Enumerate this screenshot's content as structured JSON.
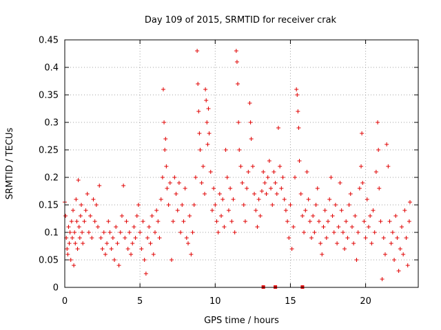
{
  "chart_data": {
    "type": "scatter",
    "title": "Day 109 of 2015, SRMTID for receiver crak",
    "xlabel": "GPS time / hours",
    "ylabel": "SRMTID / TECUs",
    "xlim": [
      0,
      23.5
    ],
    "ylim": [
      0,
      0.45
    ],
    "xticks": [
      0,
      5,
      10,
      15,
      20
    ],
    "yticks": [
      0,
      0.05,
      0.1,
      0.15,
      0.2,
      0.25,
      0.3,
      0.35,
      0.4,
      0.45
    ],
    "grid": true,
    "marker": "plus",
    "color": "#e00000",
    "series": [
      {
        "name": "SRMTID",
        "points": [
          [
            0.0,
            0.155
          ],
          [
            0.05,
            0.13
          ],
          [
            0.1,
            0.09
          ],
          [
            0.15,
            0.07
          ],
          [
            0.2,
            0.06
          ],
          [
            0.25,
            0.11
          ],
          [
            0.3,
            0.08
          ],
          [
            0.35,
            0.1
          ],
          [
            0.4,
            0.05
          ],
          [
            0.45,
            0.12
          ],
          [
            0.5,
            0.09
          ],
          [
            0.55,
            0.14
          ],
          [
            0.6,
            0.04
          ],
          [
            0.65,
            0.1
          ],
          [
            0.7,
            0.08
          ],
          [
            0.75,
            0.16
          ],
          [
            0.8,
            0.12
          ],
          [
            0.85,
            0.07
          ],
          [
            0.9,
            0.195
          ],
          [
            0.95,
            0.11
          ],
          [
            1.0,
            0.09
          ],
          [
            1.05,
            0.13
          ],
          [
            1.1,
            0.15
          ],
          [
            1.15,
            0.1
          ],
          [
            1.2,
            0.08
          ],
          [
            1.3,
            0.12
          ],
          [
            1.4,
            0.14
          ],
          [
            1.5,
            0.17
          ],
          [
            1.6,
            0.1
          ],
          [
            1.7,
            0.13
          ],
          [
            1.8,
            0.09
          ],
          [
            1.9,
            0.16
          ],
          [
            2.0,
            0.12
          ],
          [
            2.1,
            0.15
          ],
          [
            2.2,
            0.11
          ],
          [
            2.3,
            0.185
          ],
          [
            2.4,
            0.09
          ],
          [
            2.5,
            0.07
          ],
          [
            2.6,
            0.1
          ],
          [
            2.7,
            0.06
          ],
          [
            2.8,
            0.08
          ],
          [
            2.9,
            0.12
          ],
          [
            3.0,
            0.1
          ],
          [
            3.1,
            0.07
          ],
          [
            3.2,
            0.09
          ],
          [
            3.3,
            0.05
          ],
          [
            3.4,
            0.11
          ],
          [
            3.5,
            0.08
          ],
          [
            3.6,
            0.04
          ],
          [
            3.7,
            0.1
          ],
          [
            3.8,
            0.13
          ],
          [
            3.9,
            0.185
          ],
          [
            4.0,
            0.09
          ],
          [
            4.1,
            0.12
          ],
          [
            4.2,
            0.07
          ],
          [
            4.3,
            0.1
          ],
          [
            4.4,
            0.06
          ],
          [
            4.5,
            0.08
          ],
          [
            4.6,
            0.11
          ],
          [
            4.7,
            0.09
          ],
          [
            4.8,
            0.13
          ],
          [
            4.9,
            0.15
          ],
          [
            5.0,
            0.1
          ],
          [
            5.1,
            0.07
          ],
          [
            5.2,
            0.12
          ],
          [
            5.3,
            0.05
          ],
          [
            5.4,
            0.025
          ],
          [
            5.5,
            0.09
          ],
          [
            5.6,
            0.11
          ],
          [
            5.7,
            0.08
          ],
          [
            5.8,
            0.13
          ],
          [
            5.9,
            0.06
          ],
          [
            6.0,
            0.1
          ],
          [
            6.1,
            0.14
          ],
          [
            6.2,
            0.12
          ],
          [
            6.3,
            0.09
          ],
          [
            6.4,
            0.16
          ],
          [
            6.5,
            0.2
          ],
          [
            6.55,
            0.36
          ],
          [
            6.6,
            0.3
          ],
          [
            6.65,
            0.25
          ],
          [
            6.7,
            0.27
          ],
          [
            6.75,
            0.22
          ],
          [
            6.8,
            0.18
          ],
          [
            6.9,
            0.15
          ],
          [
            7.0,
            0.19
          ],
          [
            7.1,
            0.05
          ],
          [
            7.2,
            0.12
          ],
          [
            7.3,
            0.2
          ],
          [
            7.4,
            0.17
          ],
          [
            7.5,
            0.14
          ],
          [
            7.6,
            0.19
          ],
          [
            7.7,
            0.1
          ],
          [
            7.8,
            0.15
          ],
          [
            7.9,
            0.12
          ],
          [
            8.0,
            0.18
          ],
          [
            8.1,
            0.09
          ],
          [
            8.2,
            0.08
          ],
          [
            8.3,
            0.13
          ],
          [
            8.4,
            0.06
          ],
          [
            8.5,
            0.1
          ],
          [
            8.6,
            0.15
          ],
          [
            8.7,
            0.2
          ],
          [
            8.8,
            0.43
          ],
          [
            8.85,
            0.37
          ],
          [
            8.9,
            0.32
          ],
          [
            8.95,
            0.28
          ],
          [
            9.0,
            0.25
          ],
          [
            9.1,
            0.19
          ],
          [
            9.2,
            0.22
          ],
          [
            9.3,
            0.17
          ],
          [
            9.35,
            0.36
          ],
          [
            9.4,
            0.34
          ],
          [
            9.45,
            0.3
          ],
          [
            9.5,
            0.26
          ],
          [
            9.55,
            0.325
          ],
          [
            9.6,
            0.28
          ],
          [
            9.7,
            0.21
          ],
          [
            9.8,
            0.14
          ],
          [
            9.9,
            0.18
          ],
          [
            10.0,
            0.15
          ],
          [
            10.1,
            0.12
          ],
          [
            10.2,
            0.1
          ],
          [
            10.3,
            0.17
          ],
          [
            10.4,
            0.13
          ],
          [
            10.5,
            0.16
          ],
          [
            10.6,
            0.11
          ],
          [
            10.7,
            0.25
          ],
          [
            10.8,
            0.2
          ],
          [
            10.9,
            0.14
          ],
          [
            11.0,
            0.18
          ],
          [
            11.1,
            0.12
          ],
          [
            11.2,
            0.16
          ],
          [
            11.3,
            0.1
          ],
          [
            11.4,
            0.43
          ],
          [
            11.45,
            0.41
          ],
          [
            11.5,
            0.37
          ],
          [
            11.55,
            0.3
          ],
          [
            11.6,
            0.25
          ],
          [
            11.7,
            0.22
          ],
          [
            11.8,
            0.19
          ],
          [
            11.9,
            0.15
          ],
          [
            12.0,
            0.12
          ],
          [
            12.1,
            0.18
          ],
          [
            12.2,
            0.21
          ],
          [
            12.3,
            0.335
          ],
          [
            12.35,
            0.3
          ],
          [
            12.4,
            0.27
          ],
          [
            12.5,
            0.22
          ],
          [
            12.6,
            0.17
          ],
          [
            12.7,
            0.14
          ],
          [
            12.8,
            0.11
          ],
          [
            12.9,
            0.16
          ],
          [
            13.0,
            0.13
          ],
          [
            13.1,
            0.175
          ],
          [
            13.2,
            0.21
          ],
          [
            13.3,
            0.19
          ],
          [
            13.4,
            0.17
          ],
          [
            13.5,
            0.2
          ],
          [
            13.6,
            0.23
          ],
          [
            13.7,
            0.18
          ],
          [
            13.8,
            0.15
          ],
          [
            13.9,
            0.21
          ],
          [
            14.0,
            0.19
          ],
          [
            14.1,
            0.17
          ],
          [
            14.2,
            0.29
          ],
          [
            14.3,
            0.22
          ],
          [
            14.4,
            0.18
          ],
          [
            14.5,
            0.2
          ],
          [
            14.6,
            0.16
          ],
          [
            14.7,
            0.14
          ],
          [
            14.8,
            0.12
          ],
          [
            14.9,
            0.09
          ],
          [
            15.0,
            0.15
          ],
          [
            15.1,
            0.07
          ],
          [
            15.2,
            0.11
          ],
          [
            15.3,
            0.2
          ],
          [
            15.4,
            0.36
          ],
          [
            15.45,
            0.35
          ],
          [
            15.5,
            0.32
          ],
          [
            15.55,
            0.29
          ],
          [
            15.6,
            0.23
          ],
          [
            15.7,
            0.17
          ],
          [
            15.8,
            0.13
          ],
          [
            15.9,
            0.1
          ],
          [
            16.0,
            0.14
          ],
          [
            16.1,
            0.21
          ],
          [
            16.2,
            0.16
          ],
          [
            16.3,
            0.12
          ],
          [
            16.4,
            0.09
          ],
          [
            16.5,
            0.13
          ],
          [
            16.6,
            0.1
          ],
          [
            16.7,
            0.15
          ],
          [
            16.8,
            0.18
          ],
          [
            16.9,
            0.12
          ],
          [
            17.0,
            0.08
          ],
          [
            17.1,
            0.06
          ],
          [
            17.2,
            0.11
          ],
          [
            17.3,
            0.14
          ],
          [
            17.4,
            0.09
          ],
          [
            17.5,
            0.12
          ],
          [
            17.6,
            0.16
          ],
          [
            17.7,
            0.2
          ],
          [
            17.8,
            0.13
          ],
          [
            17.9,
            0.1
          ],
          [
            18.0,
            0.15
          ],
          [
            18.1,
            0.08
          ],
          [
            18.2,
            0.11
          ],
          [
            18.3,
            0.19
          ],
          [
            18.4,
            0.14
          ],
          [
            18.5,
            0.1
          ],
          [
            18.6,
            0.07
          ],
          [
            18.7,
            0.12
          ],
          [
            18.8,
            0.09
          ],
          [
            18.9,
            0.15
          ],
          [
            19.0,
            0.17
          ],
          [
            19.1,
            0.11
          ],
          [
            19.2,
            0.08
          ],
          [
            19.3,
            0.13
          ],
          [
            19.4,
            0.05
          ],
          [
            19.5,
            0.1
          ],
          [
            19.6,
            0.18
          ],
          [
            19.7,
            0.22
          ],
          [
            19.75,
            0.28
          ],
          [
            19.8,
            0.19
          ],
          [
            19.9,
            0.12
          ],
          [
            20.0,
            0.09
          ],
          [
            20.1,
            0.16
          ],
          [
            20.2,
            0.11
          ],
          [
            20.3,
            0.13
          ],
          [
            20.4,
            0.08
          ],
          [
            20.5,
            0.14
          ],
          [
            20.6,
            0.1
          ],
          [
            20.7,
            0.21
          ],
          [
            20.8,
            0.3
          ],
          [
            20.85,
            0.25
          ],
          [
            20.9,
            0.18
          ],
          [
            21.0,
            0.12
          ],
          [
            21.1,
            0.015
          ],
          [
            21.2,
            0.09
          ],
          [
            21.3,
            0.06
          ],
          [
            21.4,
            0.26
          ],
          [
            21.5,
            0.22
          ],
          [
            21.6,
            0.12
          ],
          [
            21.7,
            0.08
          ],
          [
            21.8,
            0.1
          ],
          [
            21.9,
            0.05
          ],
          [
            22.0,
            0.13
          ],
          [
            22.1,
            0.09
          ],
          [
            22.2,
            0.03
          ],
          [
            22.3,
            0.07
          ],
          [
            22.4,
            0.11
          ],
          [
            22.5,
            0.06
          ],
          [
            22.6,
            0.14
          ],
          [
            22.7,
            0.09
          ],
          [
            22.8,
            0.04
          ],
          [
            22.9,
            0.12
          ],
          [
            22.95,
            0.155
          ]
        ]
      }
    ],
    "axis_markers": [
      13.2,
      14.0,
      15.8
    ]
  }
}
